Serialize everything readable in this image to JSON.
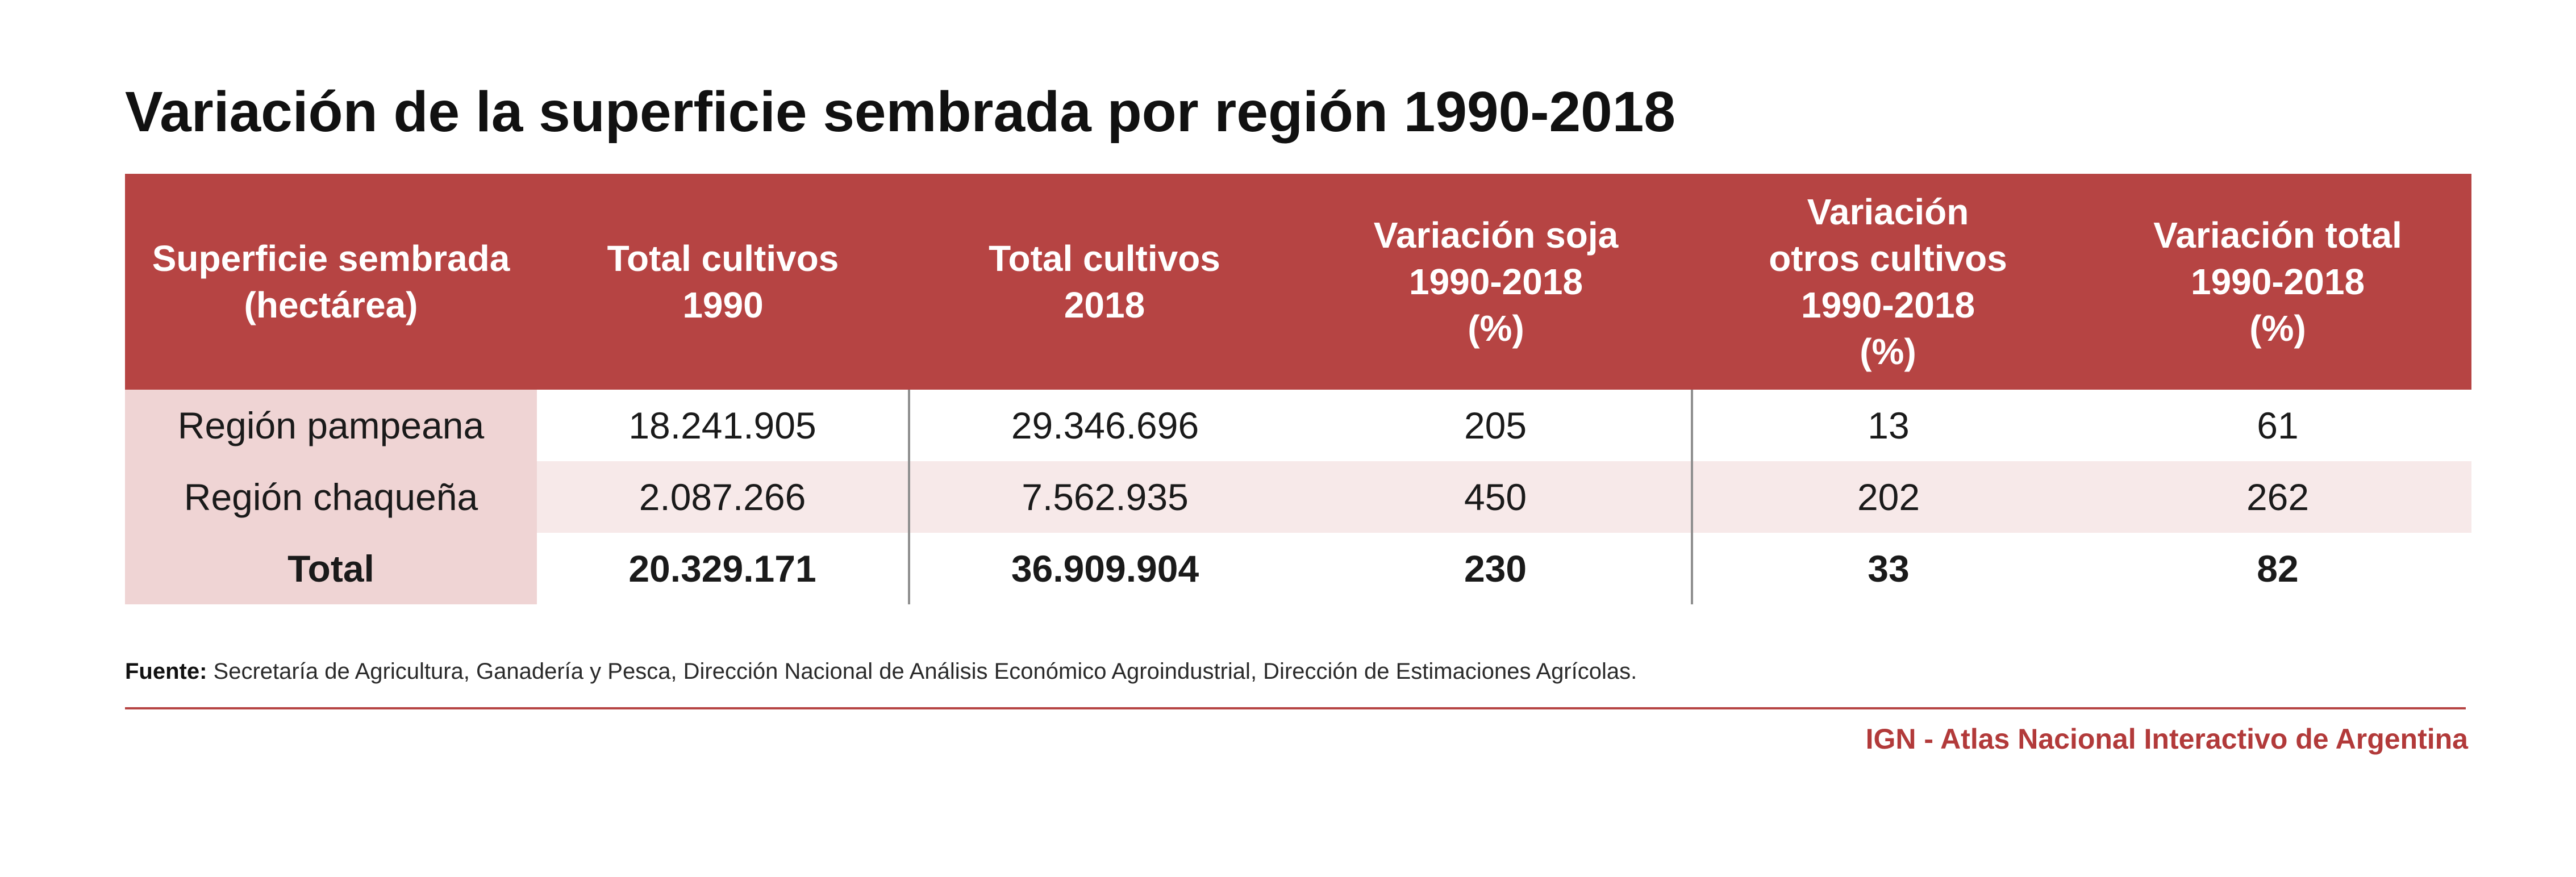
{
  "title": "Variación de la superficie sembrada por región 1990-2018",
  "table": {
    "headers": [
      "Superficie sembrada\n(hectárea)",
      "Total cultivos\n1990",
      "Total cultivos\n2018",
      "Variación soja\n1990-2018\n(%)",
      "Variación\notros cultivos\n1990-2018\n(%)",
      "Variación total\n1990-2018\n(%)"
    ],
    "rows": [
      [
        "Región pampeana",
        "18.241.905",
        "29.346.696",
        "205",
        "13",
        "61"
      ],
      [
        "Región chaqueña",
        "2.087.266",
        "7.562.935",
        "450",
        "202",
        "262"
      ],
      [
        "Total",
        "20.329.171",
        "36.909.904",
        "230",
        "33",
        "82"
      ]
    ]
  },
  "source": {
    "label": "Fuente:",
    "text": " Secretaría de Agricultura, Ganadería y Pesca, Dirección Nacional de Análisis Económico Agroindustrial, Dirección de Estimaciones Agrícolas."
  },
  "credit": "IGN - Atlas Nacional Interactivo de Argentina",
  "colors": {
    "header_background": "#b64443",
    "row_label_background": "#efd4d4",
    "alternate_row_background": "#f7e9e9",
    "credit_text": "#b23a3a"
  }
}
